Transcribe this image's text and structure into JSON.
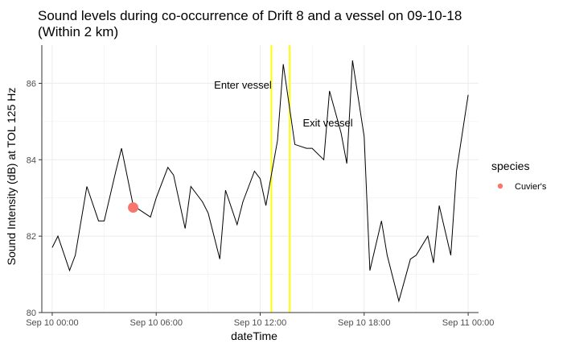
{
  "chart_data": {
    "type": "line",
    "title_lines": [
      "Sound levels during co-occurrence of Drift 8 and a vessel on 09-10-18",
      "(Within 2 km)"
    ],
    "xlabel": "dateTime",
    "ylabel": "Sound Intensity (dB) at TOL 125 Hz",
    "x_ticks": [
      {
        "hours": 0,
        "label": "Sep 10 00:00"
      },
      {
        "hours": 6,
        "label": "Sep 10 06:00"
      },
      {
        "hours": 12,
        "label": "Sep 10 12:00"
      },
      {
        "hours": 18,
        "label": "Sep 10 18:00"
      },
      {
        "hours": 24,
        "label": "Sep 11 00:00"
      }
    ],
    "y_ticks": [
      80,
      82,
      84,
      86
    ],
    "xlim": [
      -0.6,
      24.6
    ],
    "ylim": [
      80,
      87
    ],
    "grid": true,
    "series": [
      {
        "x": [
          0,
          0.33,
          1,
          1.33,
          2,
          2.67,
          3,
          3.67,
          4,
          4.67,
          5,
          5.67,
          6,
          6.67,
          7,
          7.67,
          8,
          8.67,
          9,
          9.67,
          10,
          10.67,
          11,
          11.67,
          12,
          12.33,
          13,
          13.33,
          14,
          14.67,
          15,
          15.67,
          16,
          16.67,
          17,
          17.33,
          18,
          18.33,
          19,
          19.33,
          20,
          20.67,
          21,
          21.67,
          22,
          22.33,
          23,
          23.33,
          24
        ],
        "y": [
          81.7,
          82.0,
          81.1,
          81.5,
          83.3,
          82.4,
          82.4,
          83.7,
          84.3,
          82.8,
          82.7,
          82.5,
          83.0,
          83.8,
          83.6,
          82.2,
          83.3,
          82.9,
          82.6,
          81.4,
          83.2,
          82.3,
          82.9,
          83.7,
          83.5,
          82.8,
          84.5,
          86.5,
          84.4,
          84.3,
          84.3,
          84.0,
          85.8,
          84.7,
          83.9,
          86.6,
          84.6,
          81.1,
          82.4,
          81.5,
          80.3,
          81.4,
          81.5,
          82.0,
          81.3,
          82.8,
          81.5,
          83.7,
          85.7
        ]
      }
    ],
    "species_points": [
      {
        "x": 4.67,
        "y": 82.75,
        "species": "Cuvier's"
      }
    ],
    "vlines": [
      {
        "x": 12.65
      },
      {
        "x": 13.7
      }
    ],
    "annotations": [
      {
        "text": "Enter vessel",
        "x": 11.0,
        "y": 85.95
      },
      {
        "text": "Exit vessel",
        "x": 15.9,
        "y": 84.95
      }
    ],
    "legend": {
      "title": "species",
      "entries": [
        "Cuvier's"
      ],
      "placement": "right"
    },
    "colors": {
      "line": "#000000",
      "species_point": "#F8766D",
      "vline": "#FFFF00",
      "grid": "#EBEBEB",
      "axis": "#333333"
    }
  }
}
